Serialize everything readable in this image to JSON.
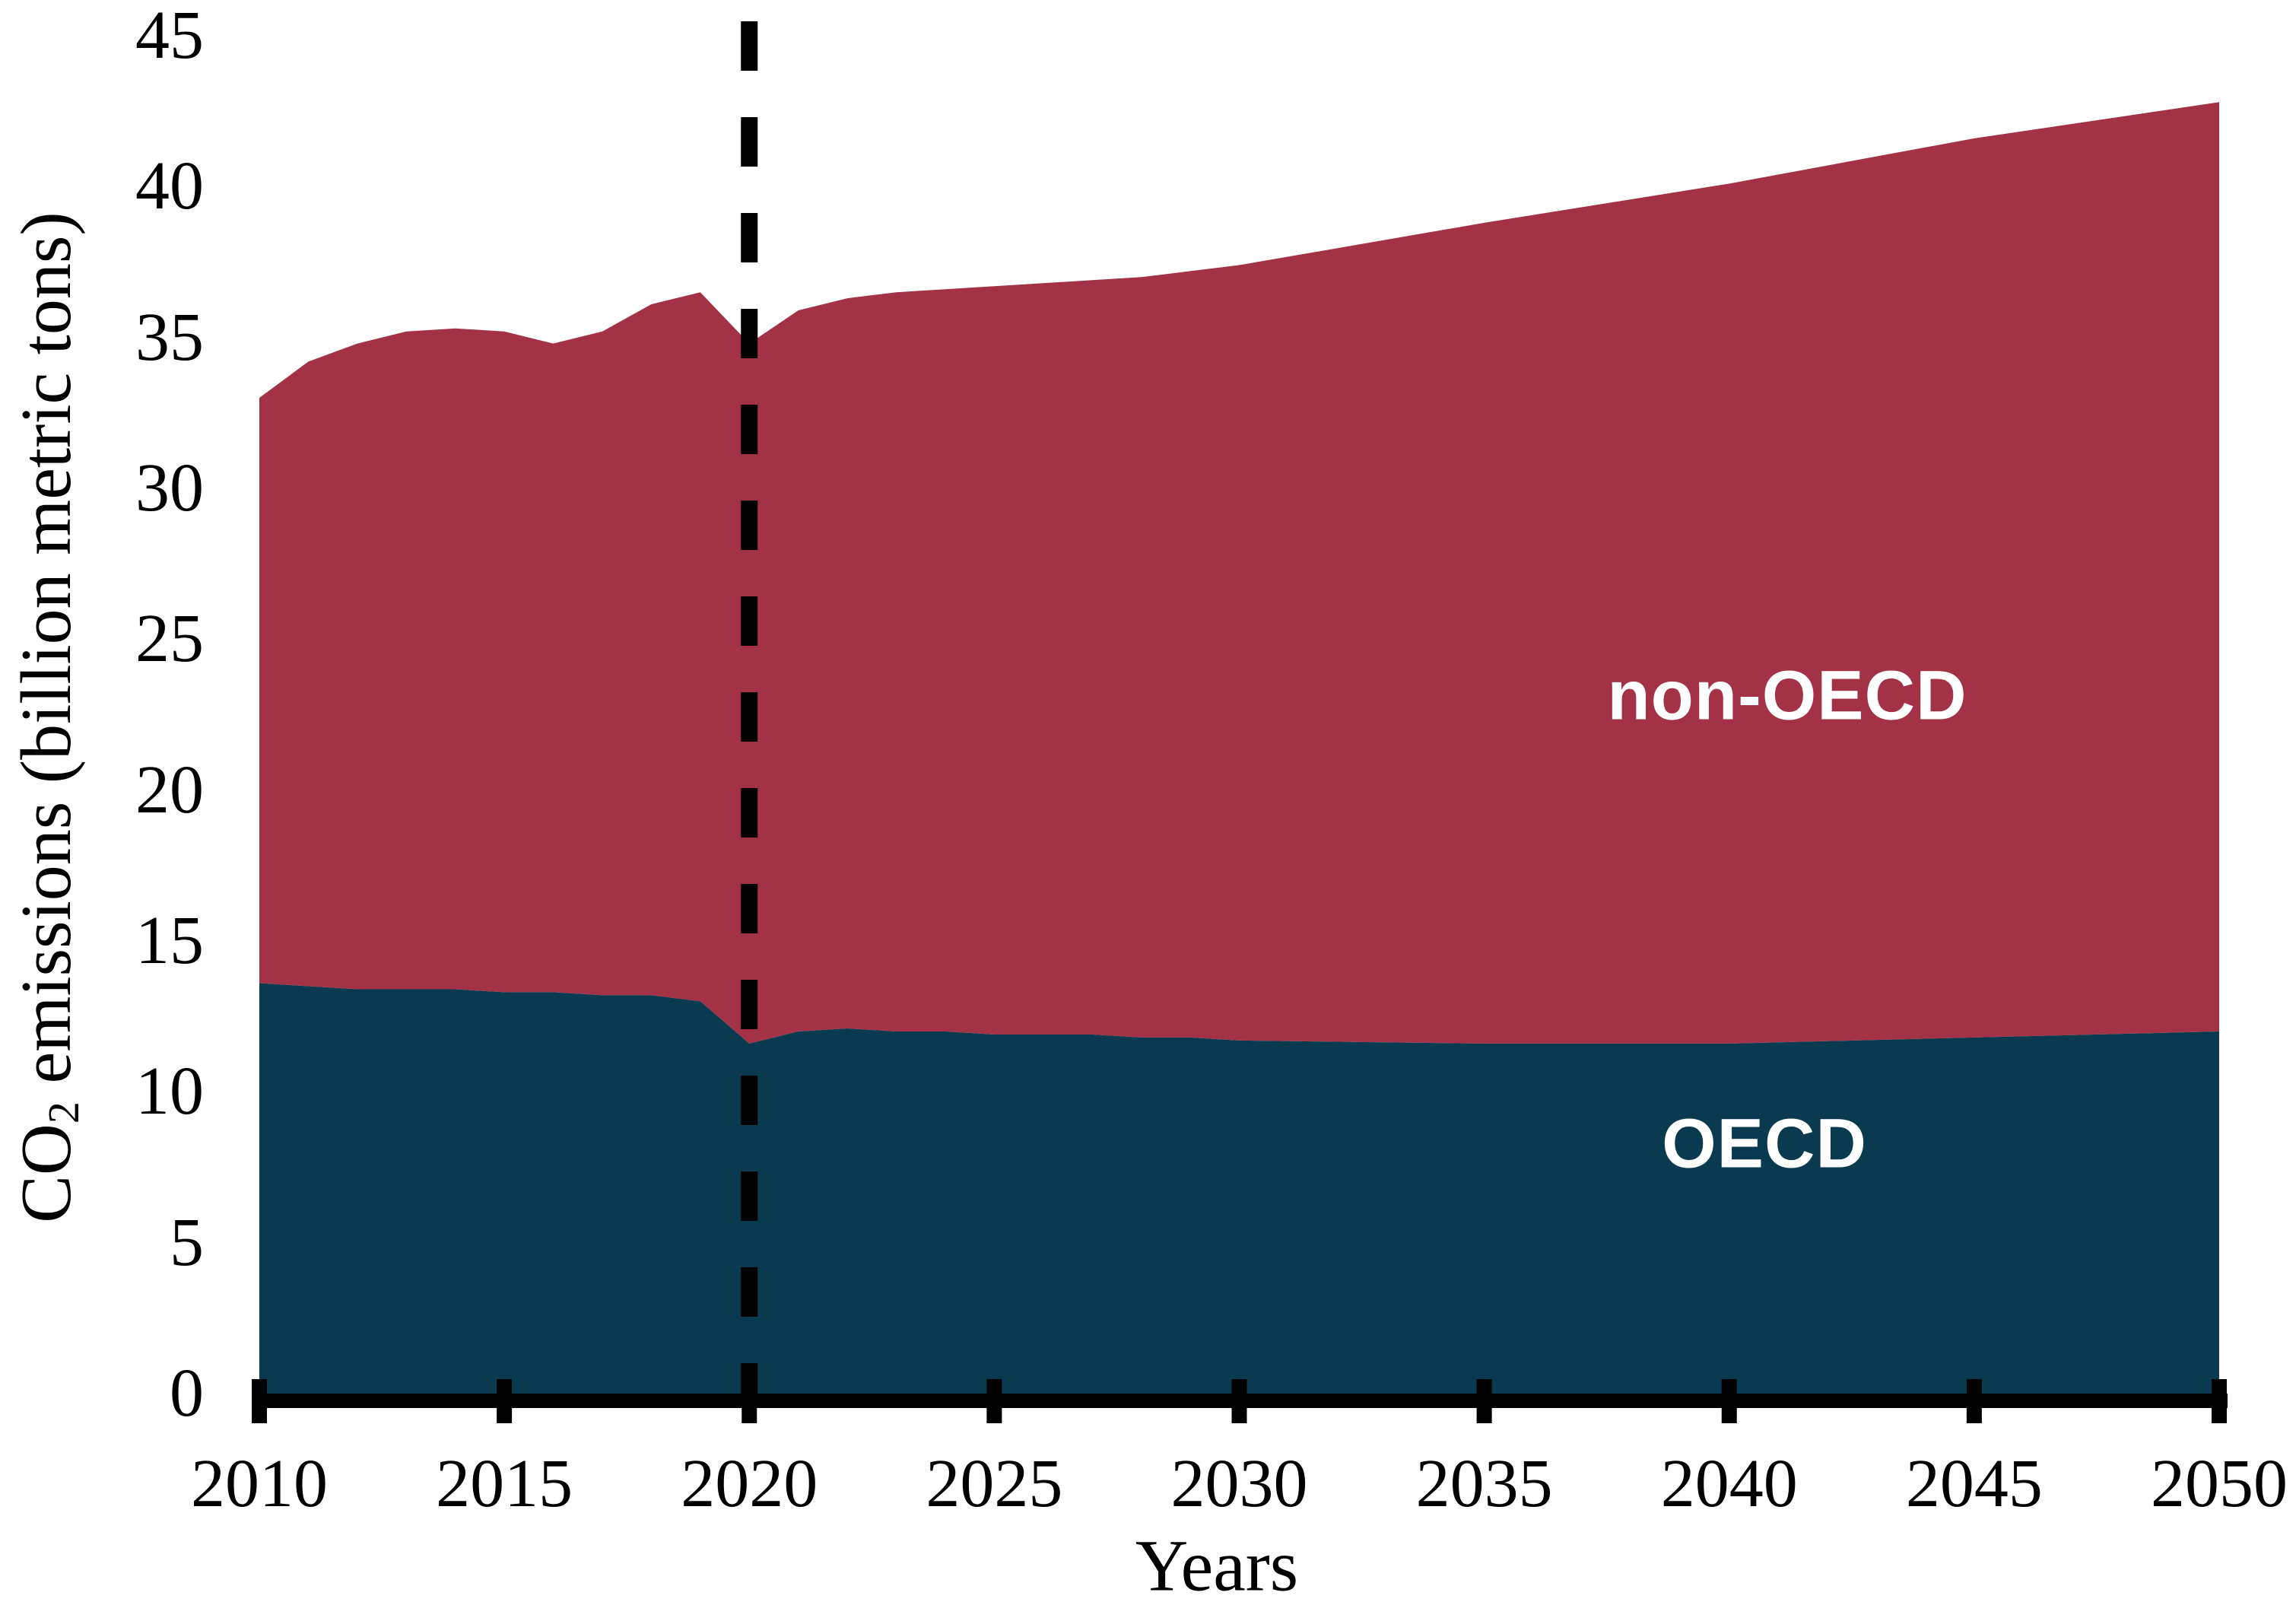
{
  "figure": {
    "y_axis": {
      "title_prefix": "CO",
      "title_subscript": "2",
      "title_suffix": " emissions (billion metric tons)",
      "tick_values": [
        0,
        5,
        10,
        15,
        20,
        25,
        30,
        35,
        40,
        45
      ],
      "tick_labels": [
        "0",
        "5",
        "10",
        "15",
        "20",
        "25",
        "30",
        "35",
        "40",
        "45"
      ]
    },
    "x_axis": {
      "title": "Years",
      "tick_values": [
        2010,
        2015,
        2020,
        2025,
        2030,
        2035,
        2040,
        2045,
        2050
      ],
      "tick_labels": [
        "2010",
        "2015",
        "2020",
        "2025",
        "2030",
        "2035",
        "2040",
        "2045",
        "2050"
      ]
    },
    "area_labels": {
      "non_oecd": "non-OECD",
      "oecd": "OECD"
    },
    "colors": {
      "oecd_fill": "#093A50",
      "non_oecd_fill": "#A33247",
      "axis_black": "#000000",
      "dashed_line": "#000000",
      "area_label_text": "#FFFFFF",
      "background": "#FFFFFF"
    }
  },
  "chart_data": {
    "type": "area",
    "stacked": true,
    "title": "",
    "xlabel": "Years",
    "ylabel": "CO2 emissions (billion metric tons)",
    "xlim": [
      2010,
      2050
    ],
    "ylim": [
      0,
      45
    ],
    "grid": false,
    "legend_position": "labels-inside-areas",
    "x": [
      2010,
      2011,
      2012,
      2013,
      2014,
      2015,
      2016,
      2017,
      2018,
      2019,
      2020,
      2021,
      2022,
      2023,
      2024,
      2025,
      2026,
      2027,
      2028,
      2029,
      2030,
      2035,
      2040,
      2045,
      2050
    ],
    "series": [
      {
        "name": "OECD",
        "values": [
          13.6,
          13.5,
          13.4,
          13.4,
          13.4,
          13.3,
          13.3,
          13.2,
          13.2,
          13.0,
          11.6,
          12.0,
          12.1,
          12.0,
          12.0,
          11.9,
          11.9,
          11.9,
          11.8,
          11.8,
          11.7,
          11.6,
          11.6,
          11.8,
          12.0
        ]
      },
      {
        "name": "non-OECD",
        "values": [
          19.4,
          20.7,
          21.4,
          21.8,
          21.9,
          21.9,
          21.5,
          22.0,
          22.9,
          23.5,
          23.2,
          23.9,
          24.2,
          24.5,
          24.6,
          24.8,
          24.9,
          25.0,
          25.2,
          25.4,
          25.7,
          27.2,
          28.5,
          29.8,
          30.8
        ]
      }
    ],
    "totals": [
      33.0,
      34.2,
      34.8,
      35.2,
      35.3,
      35.2,
      34.8,
      35.2,
      36.1,
      36.5,
      34.8,
      35.9,
      36.3,
      36.5,
      36.6,
      36.7,
      36.8,
      36.9,
      37.0,
      37.2,
      37.4,
      38.8,
      40.1,
      41.6,
      42.8
    ],
    "annotations": {
      "dashed_vertical_line_x": 2020
    }
  }
}
